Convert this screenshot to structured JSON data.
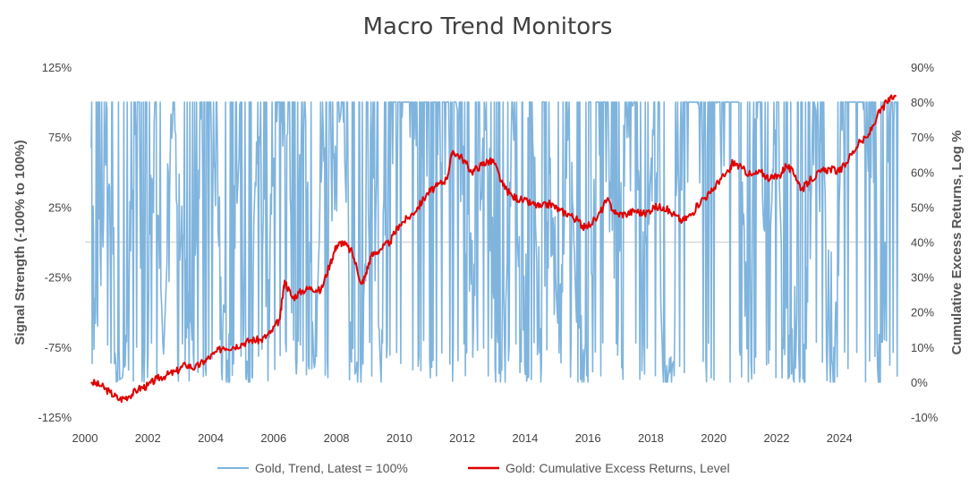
{
  "chart_data": {
    "type": "line",
    "title": "Macro Trend Monitors",
    "y_left_label": "Signal Strength (-100% to 100%)",
    "y_right_label": "Cumulative Excess Returns, Log %",
    "xlim": [
      2000,
      2025.9
    ],
    "y_left_lim": [
      -125,
      125
    ],
    "y_right_lim": [
      -10,
      90
    ],
    "x_ticks": [
      "2000",
      "2002",
      "2004",
      "2006",
      "2008",
      "2010",
      "2012",
      "2014",
      "2016",
      "2018",
      "2020",
      "2022",
      "2024"
    ],
    "y_left_ticks": [
      "125%",
      "75%",
      "25%",
      "-25%",
      "-75%",
      "-125%"
    ],
    "y_right_ticks": [
      "90%",
      "80%",
      "70%",
      "60%",
      "50%",
      "40%",
      "30%",
      "20%",
      "10%",
      "0%",
      "-10%"
    ],
    "zero_line": 0,
    "grid": false,
    "legend_position": "bottom",
    "series": [
      {
        "name": "Gold, Trend, Latest = 100%",
        "axis": "left",
        "color": "#7fb4dd",
        "style": "signal-oscillating",
        "x": [
          2000.2,
          2000.4,
          2000.7,
          2001.0,
          2001.3,
          2001.6,
          2001.9,
          2002.2,
          2002.5,
          2002.8,
          2003.1,
          2003.4,
          2003.7,
          2004.0,
          2004.3,
          2004.6,
          2004.9,
          2005.2,
          2005.5,
          2005.8,
          2006.1,
          2006.4,
          2006.7,
          2007.0,
          2007.3,
          2007.6,
          2007.9,
          2008.2,
          2008.5,
          2008.8,
          2009.1,
          2009.4,
          2009.7,
          2010.0,
          2010.3,
          2010.6,
          2010.9,
          2011.2,
          2011.5,
          2011.8,
          2012.1,
          2012.4,
          2012.7,
          2013.0,
          2013.3,
          2013.6,
          2013.9,
          2014.2,
          2014.5,
          2014.8,
          2015.1,
          2015.4,
          2015.7,
          2016.0,
          2016.3,
          2016.6,
          2016.9,
          2017.2,
          2017.5,
          2017.8,
          2018.1,
          2018.4,
          2018.7,
          2019.0,
          2019.3,
          2019.6,
          2019.9,
          2020.2,
          2020.5,
          2020.8,
          2021.1,
          2021.4,
          2021.7,
          2022.0,
          2022.3,
          2022.6,
          2022.9,
          2023.2,
          2023.5,
          2023.8,
          2024.1,
          2024.4,
          2024.7,
          2025.0,
          2025.3,
          2025.6
        ],
        "values": [
          60,
          -60,
          95,
          -100,
          -95,
          90,
          -100,
          85,
          -80,
          100,
          20,
          -70,
          100,
          100,
          -20,
          -90,
          60,
          -100,
          100,
          -40,
          100,
          100,
          -60,
          100,
          -100,
          100,
          60,
          100,
          -100,
          -80,
          100,
          -90,
          100,
          100,
          100,
          100,
          100,
          100,
          100,
          100,
          60,
          -80,
          100,
          -40,
          -100,
          100,
          -90,
          100,
          -100,
          60,
          -90,
          100,
          -100,
          -90,
          100,
          100,
          -60,
          90,
          100,
          -40,
          100,
          -100,
          -90,
          100,
          100,
          100,
          100,
          100,
          100,
          100,
          -60,
          100,
          -40,
          100,
          -100,
          -90,
          -100,
          100,
          60,
          -100,
          100,
          100,
          100,
          100,
          -100,
          100
        ]
      },
      {
        "name": "Gold: Cumulative Excess Returns, Level",
        "axis": "right",
        "color": "#e00000",
        "style": "line",
        "x": [
          2000.2,
          2000.5,
          2000.8,
          2001.1,
          2001.4,
          2001.7,
          2002.0,
          2002.3,
          2002.6,
          2002.9,
          2003.2,
          2003.5,
          2003.8,
          2004.1,
          2004.4,
          2004.7,
          2005.0,
          2005.3,
          2005.6,
          2005.9,
          2006.2,
          2006.35,
          2006.6,
          2006.9,
          2007.2,
          2007.5,
          2007.8,
          2008.0,
          2008.2,
          2008.5,
          2008.8,
          2008.9,
          2009.1,
          2009.4,
          2009.7,
          2010.0,
          2010.3,
          2010.6,
          2010.9,
          2011.2,
          2011.5,
          2011.7,
          2012.0,
          2012.3,
          2012.6,
          2012.8,
          2013.0,
          2013.3,
          2013.6,
          2013.9,
          2014.2,
          2014.5,
          2014.8,
          2015.1,
          2015.4,
          2015.7,
          2015.9,
          2016.3,
          2016.6,
          2016.9,
          2017.2,
          2017.5,
          2017.8,
          2018.1,
          2018.4,
          2018.7,
          2019.0,
          2019.3,
          2019.6,
          2019.9,
          2020.2,
          2020.5,
          2020.6,
          2020.9,
          2021.2,
          2021.5,
          2021.8,
          2022.1,
          2022.3,
          2022.6,
          2022.8,
          2023.1,
          2023.4,
          2023.7,
          2024.0,
          2024.3,
          2024.6,
          2024.9,
          2025.2,
          2025.5,
          2025.8
        ],
        "values": [
          0,
          -1,
          -3,
          -5,
          -4,
          -2,
          -1,
          1,
          2,
          3,
          5,
          4,
          6,
          8,
          10,
          10,
          11,
          12,
          12,
          14,
          18,
          29,
          24,
          26,
          27,
          26,
          34,
          39,
          40,
          37,
          28,
          30,
          36,
          38,
          40,
          45,
          47,
          50,
          54,
          56,
          58,
          66,
          64,
          60,
          62,
          63,
          63,
          56,
          53,
          52,
          51,
          50,
          51,
          49,
          48,
          46,
          44,
          47,
          52,
          48,
          48,
          49,
          48,
          50,
          50,
          48,
          46,
          48,
          52,
          54,
          58,
          60,
          63,
          61,
          59,
          60,
          58,
          59,
          62,
          59,
          55,
          58,
          60,
          61,
          60,
          64,
          68,
          70,
          76,
          80,
          82
        ]
      }
    ]
  }
}
